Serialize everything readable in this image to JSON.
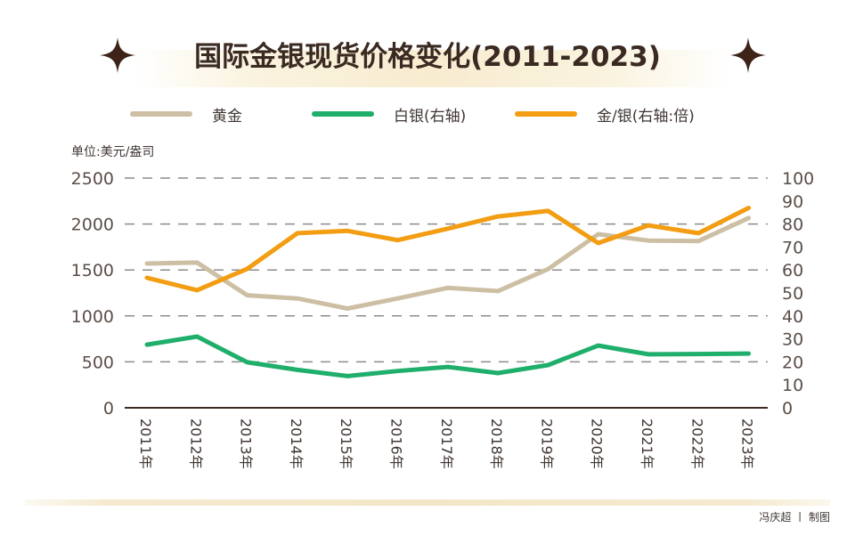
{
  "header": {
    "title": "国际金银现货价格变化(2011-2023)",
    "left_icon": "four-point-star-icon",
    "right_icon": "four-point-star-icon"
  },
  "footer": {
    "credit": "冯庆超 丨 制图"
  },
  "colors": {
    "gold": "#cdbfa3",
    "silver": "#1faf6b",
    "ratio": "#f29d12",
    "grid": "#8c8c8c",
    "axis": "#3d2a22",
    "text": "#4a3f3a",
    "star": "#3d2318"
  },
  "chart_data": {
    "type": "line",
    "title": "国际金银现货价格变化(2011-2023)",
    "unit_label": "单位:美元/盎司",
    "xlabel": "",
    "ylabel": "单位:美元/盎司",
    "y2label": "",
    "x": [
      "2011年",
      "2012年",
      "2013年",
      "2014年",
      "2015年",
      "2016年",
      "2017年",
      "2018年",
      "2019年",
      "2020年",
      "2021年",
      "2022年",
      "2023年"
    ],
    "ylim": [
      0,
      2500
    ],
    "y2lim": [
      0,
      100
    ],
    "yticks": [
      "0",
      "500",
      "1000",
      "1500",
      "2000",
      "2500"
    ],
    "y2ticks": [
      "0",
      "10",
      "20",
      "30",
      "40",
      "50",
      "60",
      "70",
      "80",
      "90",
      "100"
    ],
    "grid": true,
    "legend_position": "top",
    "series": [
      {
        "name": "黄金",
        "axis": "left",
        "color": "#cdbfa3",
        "values": [
          1570,
          1580,
          1225,
          1190,
          1080,
          1190,
          1305,
          1270,
          1510,
          1890,
          1820,
          1815,
          2065
        ]
      },
      {
        "name": "白银(右轴)",
        "axis": "right",
        "color": "#1faf6b",
        "values": [
          27.5,
          31.0,
          19.8,
          16.5,
          13.8,
          16.0,
          17.8,
          15.1,
          18.6,
          27.1,
          23.3,
          23.4,
          23.6
        ]
      },
      {
        "name": "金/银(右轴:倍)",
        "axis": "right",
        "color": "#f29d12",
        "values": [
          56.6,
          51.2,
          60.5,
          76.0,
          77.0,
          73.0,
          78.0,
          83.3,
          85.7,
          71.7,
          79.4,
          76.0,
          87.0
        ]
      }
    ]
  }
}
